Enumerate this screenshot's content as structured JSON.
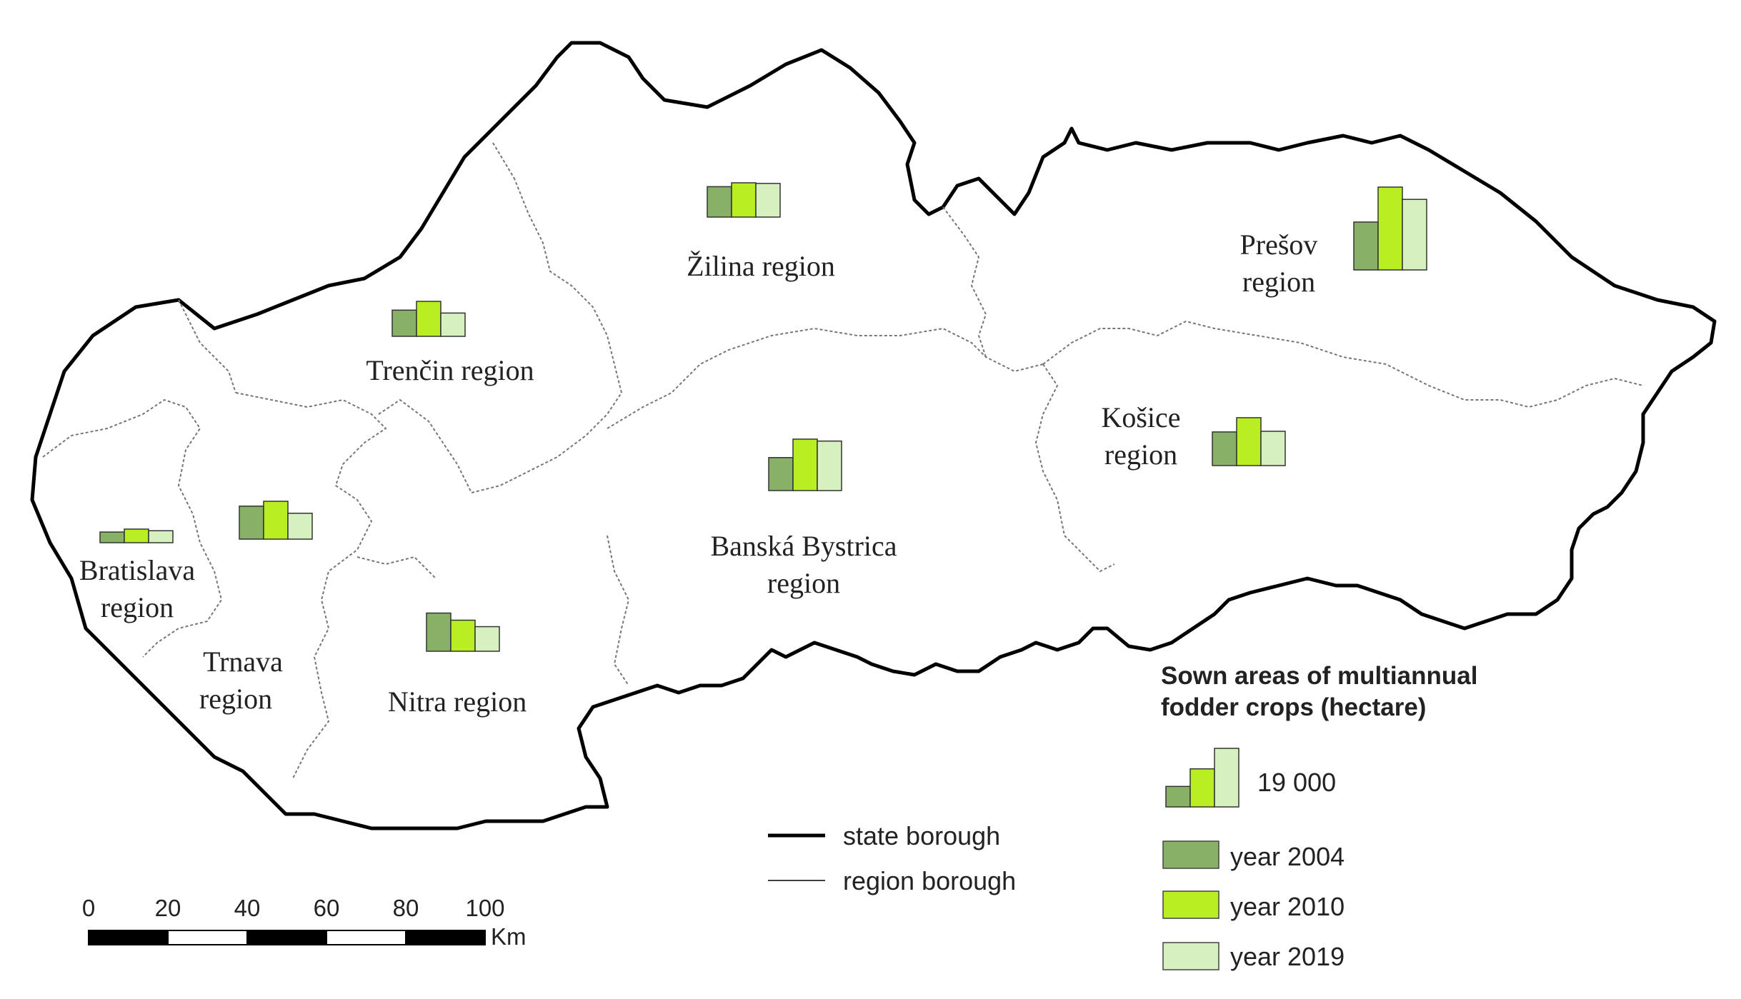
{
  "regions": [
    {
      "id": "bratislava",
      "label_lines": [
        "Bratislava",
        "region"
      ],
      "values": [
        3300,
        4200,
        3700
      ]
    },
    {
      "id": "trnava",
      "label_lines": [
        "Trnava",
        "region"
      ],
      "values": [
        10200,
        11700,
        8000
      ]
    },
    {
      "id": "nitra",
      "label_lines": [
        "Nitra region"
      ],
      "values": [
        11800,
        9600,
        7600
      ]
    },
    {
      "id": "trencin",
      "label_lines": [
        "Trenčin region"
      ],
      "values": [
        8100,
        10800,
        7200
      ]
    },
    {
      "id": "zilina",
      "label_lines": [
        "Žilina region"
      ],
      "values": [
        9400,
        10600,
        10400
      ]
    },
    {
      "id": "banska_bystrica",
      "label_lines": [
        "Banská Bystrica",
        "region"
      ],
      "values": [
        10200,
        15900,
        15300
      ]
    },
    {
      "id": "kosice",
      "label_lines": [
        "Košice",
        "region"
      ],
      "values": [
        10400,
        14800,
        10600
      ]
    },
    {
      "id": "presov",
      "label_lines": [
        "Prešov",
        "region"
      ],
      "values": [
        14800,
        25600,
        21800
      ]
    }
  ],
  "series_colors": [
    "#88b066",
    "#b8ee22",
    "#d6f0c0"
  ],
  "boundary_legend": {
    "state": "state borough",
    "region": "region borough"
  },
  "symbol_legend": {
    "title_lines": [
      "Sown areas of multiannual",
      "fodder crops (hectare)"
    ],
    "reference_value": "19 000",
    "reference_max": 19000,
    "years": [
      "year 2004",
      "year 2010",
      "year 2019"
    ]
  },
  "scale_bar": {
    "ticks": [
      "0",
      "20",
      "40",
      "60",
      "80",
      "100"
    ],
    "unit": "Km"
  }
}
